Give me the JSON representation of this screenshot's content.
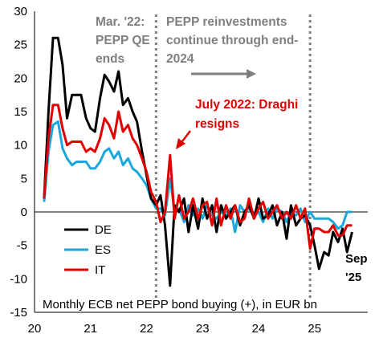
{
  "chart_data": {
    "type": "line",
    "caption": "Monthly ECB net PEPP bond buying (+), in EUR bn",
    "x_axis": {
      "range": [
        2020.0,
        2025.95
      ],
      "ticks": [
        20,
        21,
        22,
        23,
        24,
        25
      ],
      "tick_positions": [
        2020,
        2021,
        2022,
        2023,
        2024,
        2025
      ]
    },
    "y_axis": {
      "range": [
        -15,
        30
      ],
      "ticks": [
        30,
        25,
        20,
        15,
        10,
        5,
        0,
        -5,
        -10,
        -15
      ]
    },
    "grid": false,
    "legend_placement": "lower-left",
    "colors": {
      "DE": "#000000",
      "ES": "#1aa7dc",
      "IT": "#e10000",
      "grey": "#7f7f7f"
    },
    "vlines": [
      2022.17,
      2024.92
    ],
    "annotations": {
      "mar22_line1": "Mar. '22:",
      "mar22_line2": "PEPP QE",
      "mar22_line3": "ends",
      "reinv_line1": "PEPP reinvestments",
      "reinv_line2": "continue through end-",
      "reinv_line3": "2024",
      "draghi_line1": "July 2022: Draghi",
      "draghi_line2": "resigns",
      "sep_line1": "Sep",
      "sep_line2": "'25"
    },
    "x": [
      2020.17,
      2020.25,
      2020.33,
      2020.42,
      2020.5,
      2020.58,
      2020.67,
      2020.75,
      2020.83,
      2020.92,
      2021.0,
      2021.08,
      2021.17,
      2021.25,
      2021.33,
      2021.42,
      2021.5,
      2021.58,
      2021.67,
      2021.75,
      2021.83,
      2021.92,
      2022.0,
      2022.08,
      2022.17,
      2022.25,
      2022.33,
      2022.42,
      2022.5,
      2022.58,
      2022.67,
      2022.75,
      2022.83,
      2022.92,
      2023.0,
      2023.08,
      2023.17,
      2023.25,
      2023.33,
      2023.42,
      2023.5,
      2023.58,
      2023.67,
      2023.75,
      2023.83,
      2023.92,
      2024.0,
      2024.08,
      2024.17,
      2024.25,
      2024.33,
      2024.42,
      2024.5,
      2024.58,
      2024.67,
      2024.75,
      2024.83,
      2024.92,
      2025.0,
      2025.08,
      2025.17,
      2025.25,
      2025.33,
      2025.42,
      2025.5,
      2025.58,
      2025.67
    ],
    "series": [
      {
        "name": "DE",
        "values": [
          2,
          15,
          26,
          26,
          22,
          14,
          17.5,
          17.5,
          17.5,
          14,
          12.5,
          12,
          17,
          20.5,
          19.5,
          18,
          21,
          16,
          17,
          15,
          13.5,
          9,
          5.5,
          2,
          1,
          2.5,
          -2,
          -11,
          1,
          0,
          2,
          -3,
          1,
          -2.5,
          2,
          -1,
          1,
          -3,
          1,
          -1,
          0,
          1,
          -2,
          0,
          1,
          -1,
          2,
          -1,
          -0.5,
          1,
          -2,
          0,
          -4,
          1,
          -2,
          -1,
          -0.5,
          -2,
          -5,
          -8.5,
          -6,
          -6.5,
          -3,
          -4.5,
          -2.5,
          -6,
          -3
        ]
      },
      {
        "name": "ES",
        "values": [
          1.5,
          9,
          13,
          13.5,
          9.5,
          8,
          7,
          7.5,
          7.5,
          7.5,
          6.5,
          6.5,
          7.5,
          9,
          9.5,
          8,
          9,
          7,
          8,
          6.5,
          6,
          5,
          4,
          2,
          0.5,
          0.5,
          -0.5,
          5,
          0,
          0.5,
          -1.5,
          1,
          -0.5,
          0.5,
          -1,
          1,
          -0.5,
          -1,
          0,
          -0.5,
          0.5,
          -3,
          1,
          0,
          0.5,
          -0.5,
          0,
          -1.5,
          0.5,
          -1,
          0.5,
          0,
          -1.5,
          0,
          -0.5,
          0.5,
          -1.5,
          0,
          -1,
          -1,
          -1,
          -1,
          -1.5,
          -2.5,
          -2,
          0,
          0
        ]
      },
      {
        "name": "IT",
        "values": [
          2,
          11,
          16,
          16,
          12.5,
          10,
          10.5,
          10.5,
          10.5,
          9,
          9.5,
          9,
          11,
          14,
          13,
          11,
          15,
          12,
          13,
          11,
          10,
          8,
          6,
          3,
          1.5,
          -1.5,
          0,
          8.5,
          -1,
          2.5,
          -1,
          0,
          2,
          -1,
          1,
          1.5,
          -2,
          2,
          -2,
          1,
          -1,
          1,
          -1.5,
          -1,
          2,
          -1,
          0.5,
          1.5,
          -1,
          0,
          1,
          -1,
          0,
          -1,
          1,
          -1,
          0.5,
          -5.5,
          -2.5,
          -2.5,
          -3,
          -3,
          -2,
          -3.5,
          -3.5,
          -2,
          -2
        ]
      }
    ]
  }
}
